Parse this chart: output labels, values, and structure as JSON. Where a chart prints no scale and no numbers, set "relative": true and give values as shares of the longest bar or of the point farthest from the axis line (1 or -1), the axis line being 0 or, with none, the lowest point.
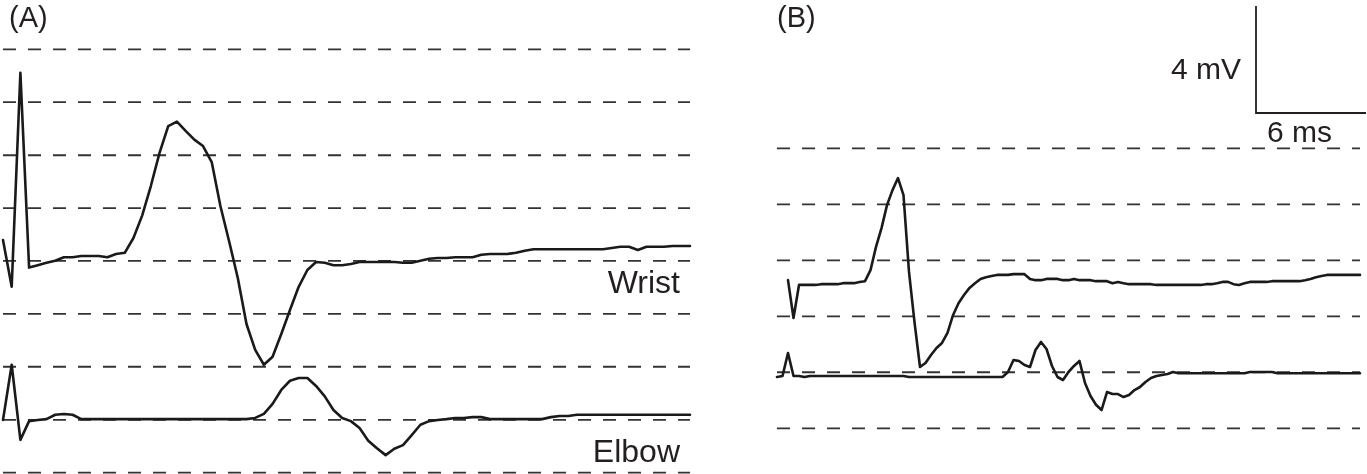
{
  "chart_data": [
    {
      "type": "line",
      "title": "(A)",
      "relative": true,
      "categories": [
        null,
        null,
        null,
        null,
        null,
        null,
        null,
        null,
        null,
        null,
        null,
        null,
        null,
        null,
        null,
        null,
        null,
        null,
        null,
        null,
        null,
        null,
        null,
        null,
        null,
        null,
        null,
        null,
        null,
        null,
        null,
        null,
        null,
        null,
        null,
        null,
        null,
        null,
        null,
        null,
        null,
        null,
        null,
        null,
        null,
        null,
        null,
        null,
        null,
        null,
        null,
        null,
        null,
        null,
        null,
        null,
        null,
        null,
        null,
        null,
        null,
        null,
        null,
        null,
        null,
        null,
        null,
        null,
        null,
        null,
        null,
        null,
        null,
        null,
        null,
        null,
        null,
        null,
        null,
        null
      ],
      "series": [
        {
          "name": "Wrist",
          "color": "#1a1a1a",
          "values": [
            0.582,
            0.465,
            1,
            0.513,
            0.519,
            0.525,
            0.53,
            0.539,
            0.539,
            0.542,
            0.542,
            0.542,
            0.539,
            0.547,
            0.55,
            0.587,
            0.643,
            0.717,
            0.8,
            0.867,
            0.878,
            0.855,
            0.833,
            0.817,
            0.777,
            0.667,
            0.579,
            0.487,
            0.372,
            0.307,
            0.27,
            0.29,
            0.347,
            0.407,
            0.465,
            0.507,
            0.527,
            0.525,
            0.519,
            0.519,
            0.522,
            0.527,
            0.527,
            0.527,
            0.527,
            0.527,
            0.525,
            0.525,
            0.53,
            0.535,
            0.537,
            0.537,
            0.539,
            0.539,
            0.539,
            0.545,
            0.547,
            0.547,
            0.547,
            0.55,
            0.555,
            0.559,
            0.559,
            0.559,
            0.559,
            0.559,
            0.559,
            0.559,
            0.559,
            0.559,
            0.562,
            0.565,
            0.565,
            0.557,
            0.565,
            0.565,
            0.565,
            0.567,
            0.567,
            0.567
          ]
        },
        {
          "name": "Elbow",
          "color": "#1a1a1a",
          "values": [
            0.132,
            0.27,
            0.082,
            0.129,
            0.132,
            0.134,
            0.145,
            0.147,
            0.145,
            0.134,
            0.134,
            0.134,
            0.134,
            0.134,
            0.134,
            0.134,
            0.134,
            0.134,
            0.134,
            0.134,
            0.134,
            0.134,
            0.134,
            0.134,
            0.134,
            0.134,
            0.134,
            0.134,
            0.134,
            0.137,
            0.147,
            0.172,
            0.207,
            0.23,
            0.237,
            0.237,
            0.217,
            0.191,
            0.157,
            0.137,
            0.129,
            0.112,
            0.08,
            0.061,
            0.044,
            0.06,
            0.069,
            0.094,
            0.12,
            0.129,
            0.132,
            0.134,
            0.137,
            0.137,
            0.139,
            0.139,
            0.134,
            0.134,
            0.134,
            0.134,
            0.134,
            0.134,
            0.134,
            0.139,
            0.142,
            0.142,
            0.145,
            0.145,
            0.145,
            0.145,
            0.145,
            0.145,
            0.145,
            0.145,
            0.145,
            0.145,
            0.145,
            0.145,
            0.145,
            0.145
          ]
        }
      ],
      "ref_lines": [
        {
          "axis": "y",
          "value": 1.059,
          "color": "#333333",
          "line_style": "dashed"
        },
        {
          "axis": "y",
          "value": 0.927,
          "color": "#333333",
          "line_style": "dashed"
        },
        {
          "axis": "y",
          "value": 0.794,
          "color": "#333333",
          "line_style": "dashed"
        },
        {
          "axis": "y",
          "value": 0.662,
          "color": "#333333",
          "line_style": "dashed"
        },
        {
          "axis": "y",
          "value": 0.53,
          "color": "#333333",
          "line_style": "dashed"
        },
        {
          "axis": "y",
          "value": 0.397,
          "color": "#333333",
          "line_style": "dashed"
        },
        {
          "axis": "y",
          "value": 0.265,
          "color": "#333333",
          "line_style": "dashed"
        },
        {
          "axis": "y",
          "value": 0.132,
          "color": "#333333",
          "line_style": "dashed"
        },
        {
          "axis": "y",
          "value": 0,
          "color": "#333333",
          "line_style": "dashed"
        }
      ]
    },
    {
      "type": "line",
      "title": "(B)",
      "relative": true,
      "categories": [
        null,
        null,
        null,
        null,
        null,
        null,
        null,
        null,
        null,
        null,
        null,
        null,
        null,
        null,
        null,
        null,
        null,
        null,
        null,
        null,
        null,
        null,
        null,
        null,
        null,
        null,
        null,
        null,
        null,
        null,
        null,
        null,
        null,
        null,
        null,
        null,
        null,
        null,
        null,
        null,
        null,
        null,
        null,
        null,
        null,
        null,
        null,
        null,
        null,
        null,
        null,
        null,
        null,
        null,
        null,
        null,
        null,
        null,
        null,
        null,
        null,
        null,
        null,
        null,
        null,
        null,
        null,
        null,
        null,
        null,
        null,
        null,
        null,
        null,
        null,
        null,
        null,
        null,
        null,
        null,
        null,
        null,
        null,
        null,
        null,
        null,
        null,
        null,
        null,
        null,
        null,
        null,
        null,
        null,
        null,
        null,
        null,
        null,
        null,
        null,
        null,
        null,
        null,
        null,
        null,
        null,
        null
      ],
      "series": [
        {
          "color": "#1a1a1a",
          "values": [
            null,
            null,
            0.592,
            0.441,
            0.573,
            0.573,
            0.573,
            0.573,
            0.576,
            0.576,
            0.576,
            0.576,
            0.58,
            0.58,
            0.58,
            0.585,
            0.588,
            0.632,
            0.725,
            0.8,
            0.892,
            0.952,
            1,
            0.932,
            0.625,
            0.424,
            0.245,
            0.261,
            0.293,
            0.321,
            0.341,
            0.381,
            0.452,
            0.5,
            0.533,
            0.561,
            0.58,
            0.597,
            0.604,
            0.609,
            0.613,
            0.613,
            0.613,
            0.616,
            0.616,
            0.616,
            0.597,
            0.592,
            0.592,
            0.597,
            0.597,
            0.597,
            0.592,
            0.592,
            0.597,
            0.592,
            0.592,
            0.592,
            0.588,
            0.588,
            0.588,
            0.58,
            0.585,
            0.58,
            0.576,
            0.576,
            0.576,
            0.576,
            0.576,
            0.573,
            0.573,
            0.573,
            0.573,
            0.573,
            0.573,
            0.573,
            0.573,
            0.573,
            0.576,
            0.576,
            0.58,
            0.585,
            0.585,
            0.576,
            0.573,
            0.58,
            0.585,
            0.585,
            0.585,
            0.585,
            0.588,
            0.588,
            0.588,
            0.588,
            0.588,
            0.588,
            0.592,
            0.597,
            0.604,
            0.609,
            0.613,
            0.613,
            0.613,
            0.613,
            0.613,
            0.613,
            0.613
          ]
        },
        {
          "color": "#1a1a1a",
          "values": [
            0.205,
            0.209,
            0.301,
            0.209,
            0.209,
            0.205,
            0.209,
            0.209,
            0.209,
            0.209,
            0.209,
            0.209,
            0.209,
            0.209,
            0.209,
            0.209,
            0.209,
            0.209,
            0.209,
            0.209,
            0.209,
            0.209,
            0.209,
            0.209,
            0.205,
            0.205,
            0.205,
            0.205,
            0.205,
            0.205,
            0.205,
            0.205,
            0.205,
            0.205,
            0.205,
            0.205,
            0.205,
            0.205,
            0.205,
            0.205,
            0.205,
            0.205,
            0.225,
            0.273,
            0.269,
            0.253,
            0.245,
            0.313,
            0.345,
            0.317,
            0.249,
            0.205,
            0.193,
            0.225,
            0.249,
            0.269,
            0.181,
            0.129,
            0.094,
            0.073,
            0.145,
            0.137,
            0.137,
            0.125,
            0.133,
            0.153,
            0.165,
            0.185,
            0.201,
            0.209,
            0.213,
            0.217,
            0.225,
            0.22,
            0.22,
            0.22,
            0.22,
            0.22,
            0.22,
            0.22,
            0.22,
            0.22,
            0.22,
            0.22,
            0.22,
            0.22,
            0.225,
            0.225,
            0.225,
            0.225,
            0.225,
            0.22,
            0.22,
            0.22,
            0.22,
            0.22,
            0.22,
            0.22,
            0.22,
            0.22,
            0.22,
            0.22,
            0.22,
            0.22,
            0.22,
            0.22,
            0.22
          ]
        }
      ],
      "ref_lines": [
        {
          "axis": "y",
          "value": 1.119,
          "color": "#333333",
          "line_style": "dashed"
        },
        {
          "axis": "y",
          "value": 0.895,
          "color": "#333333",
          "line_style": "dashed"
        },
        {
          "axis": "y",
          "value": 0.671,
          "color": "#333333",
          "line_style": "dashed"
        },
        {
          "axis": "y",
          "value": 0.447,
          "color": "#333333",
          "line_style": "dashed"
        },
        {
          "axis": "y",
          "value": 0.224,
          "color": "#333333",
          "line_style": "dashed"
        },
        {
          "axis": "y",
          "value": 0,
          "color": "#333333",
          "line_style": "dashed"
        }
      ],
      "annotations": [
        "4 mV",
        "6 ms"
      ]
    }
  ]
}
